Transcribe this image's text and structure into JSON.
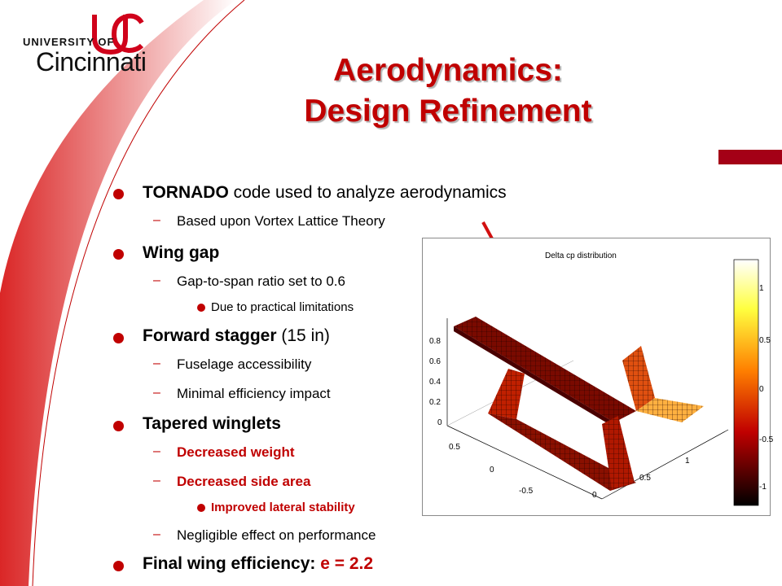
{
  "logo": {
    "line1": "UNIVERSITY OF",
    "line2": "Cincinnati"
  },
  "title": {
    "line1": "Aerodynamics:",
    "line2": "Design Refinement"
  },
  "bullets": [
    {
      "bold": "TORNADO",
      "text": " code used to analyze aerodynamics"
    },
    {
      "sub": "Based upon Vortex Lattice Theory"
    },
    {
      "bold": "Wing gap"
    },
    {
      "sub": "Gap-to-span ratio set to 0.6"
    },
    {
      "subsub": "Due to practical limitations"
    },
    {
      "bold": "Forward stagger",
      "text": " (15 in)"
    },
    {
      "sub": "Fuselage accessibility"
    },
    {
      "sub": "Minimal efficiency impact"
    },
    {
      "bold": "Tapered winglets"
    },
    {
      "sub": "Decreased weight"
    },
    {
      "sub": "Decreased side area"
    },
    {
      "subsub": "Improved lateral stability"
    },
    {
      "sub": "Negligible effect on performance"
    },
    {
      "bold": "Final wing efficiency:",
      "text": " e = 2.2"
    }
  ],
  "plot": {
    "title": "Delta cp distribution",
    "z_ticks": [
      "0.8",
      "0.6",
      "0.4",
      "0.2",
      "0"
    ],
    "y_ticks": [
      "0.5",
      "0",
      "-0.5"
    ],
    "x_ticks": [
      "0",
      "0.5",
      "1"
    ],
    "colorbar_ticks": [
      "1",
      "0.5",
      "0",
      "-0.5",
      "-1"
    ]
  },
  "colors": {
    "accent": "#c00000",
    "rule": "#a40016"
  }
}
